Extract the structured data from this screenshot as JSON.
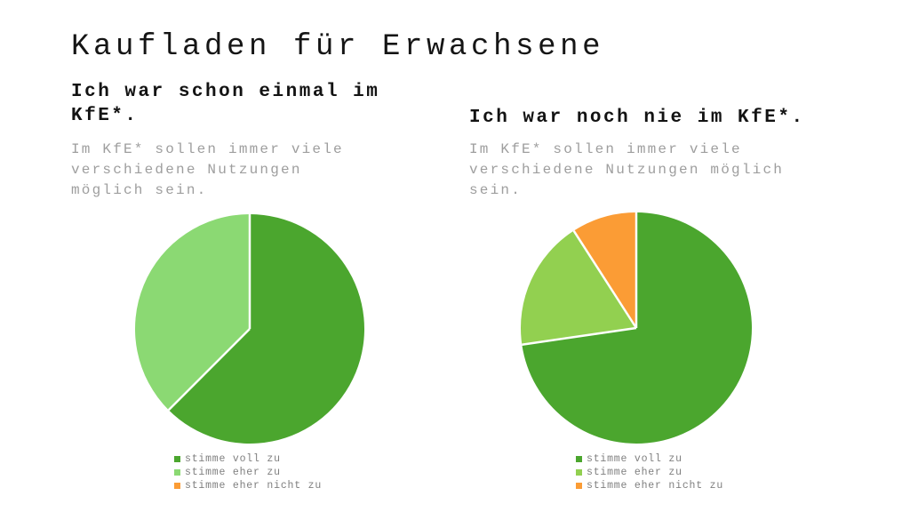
{
  "page": {
    "title": "Kaufladen für Erwachsene",
    "background_color": "#ffffff",
    "title_color": "#151515",
    "subtitle_color": "#9e9e9e",
    "legend_text_color": "#7f7f7f"
  },
  "chart_data": [
    {
      "type": "pie",
      "title": "Ich war schon einmal im KfE*.",
      "subtitle": "Im KfE* sollen immer viele verschiedene Nutzungen möglich sein.",
      "labels": [
        "stimme voll zu",
        "stimme eher zu",
        "stimme eher nicht zu"
      ],
      "values": [
        62.5,
        37.5,
        0
      ],
      "unit": "percent",
      "colors": [
        "#4ba62e",
        "#8bd973",
        "#fb9c35"
      ],
      "start_angle_deg": 0,
      "direction": "clockwise",
      "legend_position": "bottom",
      "slice_border_color": "#ffffff"
    },
    {
      "type": "pie",
      "title": "Ich war noch nie im KfE*.",
      "subtitle": "Im KfE* sollen immer viele verschiedene Nutzungen möglich sein.",
      "labels": [
        "stimme voll zu",
        "stimme eher zu",
        "stimme eher nicht zu"
      ],
      "values": [
        72.7,
        18.2,
        9.1
      ],
      "unit": "percent",
      "colors": [
        "#4ba62e",
        "#92d050",
        "#fb9c35"
      ],
      "start_angle_deg": 0,
      "direction": "clockwise",
      "legend_position": "bottom",
      "slice_border_color": "#ffffff"
    }
  ]
}
